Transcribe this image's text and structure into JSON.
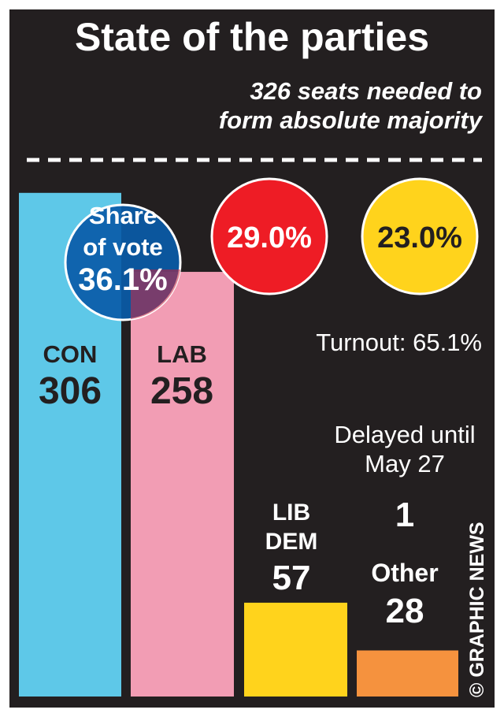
{
  "title": "State of the parties",
  "subtitle_lines": [
    "326 seats needed to",
    "form absolute majority"
  ],
  "turnout": "Turnout: 65.1%",
  "delayed": {
    "lines": [
      "Delayed until",
      "May 27"
    ],
    "value": "1"
  },
  "credit": "© GRAPHIC NEWS",
  "colors": {
    "background": "#231f20",
    "con": "#5ec8e8",
    "lab": "#f29db4",
    "libdem": "#ffd31c",
    "other": "#f5923e",
    "con_circle": "#0a5ba8",
    "lab_circle": "#ee1c25",
    "libdem_circle": "#ffd31c",
    "text_dark": "#231f20",
    "text_light": "#ffffff"
  },
  "share_of_vote": {
    "label_lines": [
      "Share",
      "of vote"
    ],
    "con": "36.1%",
    "lab": "29.0%",
    "libdem": "23.0%"
  },
  "chart_data": {
    "type": "bar",
    "categories": [
      "CON",
      "LAB",
      "LIB DEM",
      "Other"
    ],
    "values": [
      306,
      258,
      57,
      28
    ],
    "label_lines": [
      [
        "CON"
      ],
      [
        "LAB"
      ],
      [
        "LIB",
        "DEM"
      ],
      [
        "Other"
      ]
    ],
    "vote_share": [
      36.1,
      29.0,
      23.0,
      null
    ],
    "delayed_seats": 1,
    "majority_line": 326,
    "title": "State of the parties",
    "ylim": [
      0,
      326
    ],
    "grid": false,
    "legend": "none"
  }
}
